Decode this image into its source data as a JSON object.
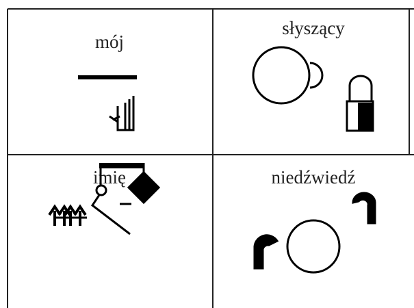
{
  "table": {
    "rows": [
      [
        "mój",
        "słyszący"
      ],
      [
        "imię",
        "niedźwiedź"
      ]
    ]
  }
}
